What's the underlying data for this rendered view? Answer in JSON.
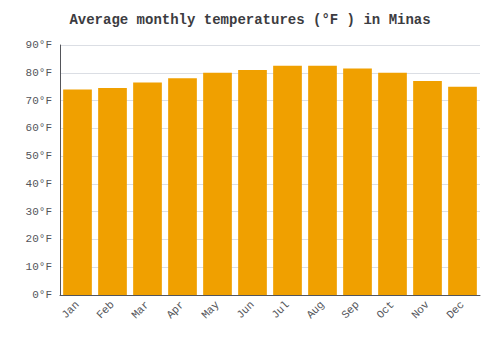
{
  "chart_data": {
    "type": "bar",
    "title": "Average monthly temperatures (°F ) in Minas",
    "categories": [
      "Jan",
      "Feb",
      "Mar",
      "Apr",
      "May",
      "Jun",
      "Jul",
      "Aug",
      "Sep",
      "Oct",
      "Nov",
      "Dec"
    ],
    "values": [
      74,
      74.5,
      76.5,
      78,
      80,
      81,
      82.5,
      82.5,
      81.5,
      80,
      77,
      75
    ],
    "color": "#F0A000",
    "ylim": [
      0,
      90
    ],
    "yticks": [
      {
        "value": 0,
        "label": "0°F"
      },
      {
        "value": 10,
        "label": "10°F"
      },
      {
        "value": 20,
        "label": "20°F"
      },
      {
        "value": 30,
        "label": "30°F"
      },
      {
        "value": 40,
        "label": "40°F"
      },
      {
        "value": 50,
        "label": "50°F"
      },
      {
        "value": 60,
        "label": "60°F"
      },
      {
        "value": 70,
        "label": "70°F"
      },
      {
        "value": 80,
        "label": "80°F"
      },
      {
        "value": 90,
        "label": "90°F"
      }
    ],
    "grid": true
  }
}
